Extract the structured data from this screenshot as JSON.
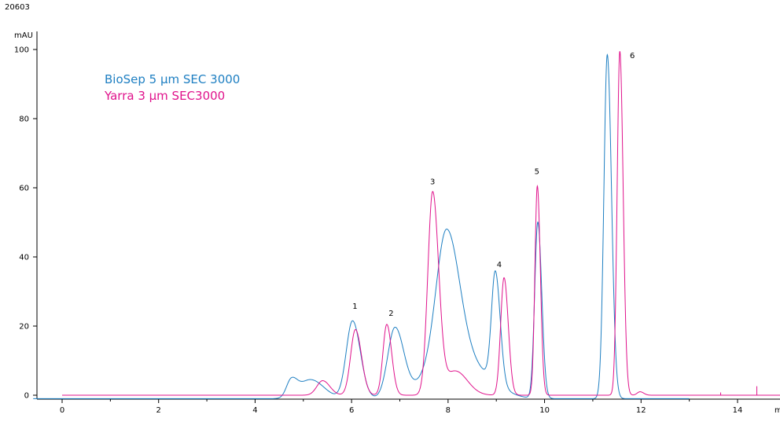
{
  "header": {
    "figure_id": "20603"
  },
  "chart_data": {
    "type": "line",
    "title": "",
    "xlabel": "",
    "ylabel": "mAU",
    "x_unit_label": "m",
    "xlim": [
      -0.6,
      14.9
    ],
    "ylim": [
      -2,
      103
    ],
    "x_ticks": [
      0,
      2,
      4,
      6,
      8,
      10,
      12,
      14
    ],
    "y_ticks": [
      0,
      20,
      40,
      60,
      80,
      100
    ],
    "grid": false,
    "legend_position": "top-left",
    "series": [
      {
        "name": "BioSep 5 µm SEC 3000",
        "color": "#1e7fc2",
        "peaks": [
          {
            "x": 4.75,
            "h": 5,
            "s": 0.1
          },
          {
            "x": 5.15,
            "h": 5.5,
            "s": 0.22
          },
          {
            "x": 6.02,
            "h": 22.5,
            "s": 0.13
          },
          {
            "x": 6.9,
            "h": 20.5,
            "s": 0.15
          },
          {
            "x": 7.97,
            "h": 45,
            "s": 0.22
          },
          {
            "x": 7.55,
            "h": 5,
            "s": 0.25
          },
          {
            "x": 8.55,
            "h": 8,
            "s": 0.35
          },
          {
            "x": 8.98,
            "h": 32,
            "s": 0.08
          },
          {
            "x": 9.86,
            "h": 51,
            "s": 0.065
          },
          {
            "x": 11.3,
            "h": 99.5,
            "s": 0.07
          }
        ],
        "x_start": -0.6,
        "x_end": 13.0,
        "baseline": -1
      },
      {
        "name": "Yarra 3 µm SEC3000",
        "color": "#e0138c",
        "peaks": [
          {
            "x": 5.4,
            "h": 4.2,
            "s": 0.12
          },
          {
            "x": 6.08,
            "h": 19,
            "s": 0.1
          },
          {
            "x": 6.73,
            "h": 20.5,
            "s": 0.08
          },
          {
            "x": 7.68,
            "h": 58.5,
            "s": 0.1
          },
          {
            "x": 8.15,
            "h": 7,
            "s": 0.2
          },
          {
            "x": 9.16,
            "h": 34,
            "s": 0.07
          },
          {
            "x": 9.85,
            "h": 60.5,
            "s": 0.05
          },
          {
            "x": 11.56,
            "h": 99.5,
            "s": 0.055
          },
          {
            "x": 11.98,
            "h": 1,
            "s": 0.06
          }
        ],
        "x_start": 0.0,
        "x_end": 14.9,
        "baseline": 0,
        "spikes": [
          {
            "x": 13.65,
            "h": 0.8
          },
          {
            "x": 14.4,
            "h": 2.6
          }
        ]
      }
    ],
    "peak_labels": [
      {
        "text": "1",
        "x": 6.07,
        "y": 25
      },
      {
        "text": "2",
        "x": 6.82,
        "y": 23
      },
      {
        "text": "3",
        "x": 7.68,
        "y": 61
      },
      {
        "text": "4",
        "x": 9.06,
        "y": 37
      },
      {
        "text": "5",
        "x": 9.84,
        "y": 64
      },
      {
        "text": "6",
        "x": 11.82,
        "y": 97.5
      }
    ]
  }
}
